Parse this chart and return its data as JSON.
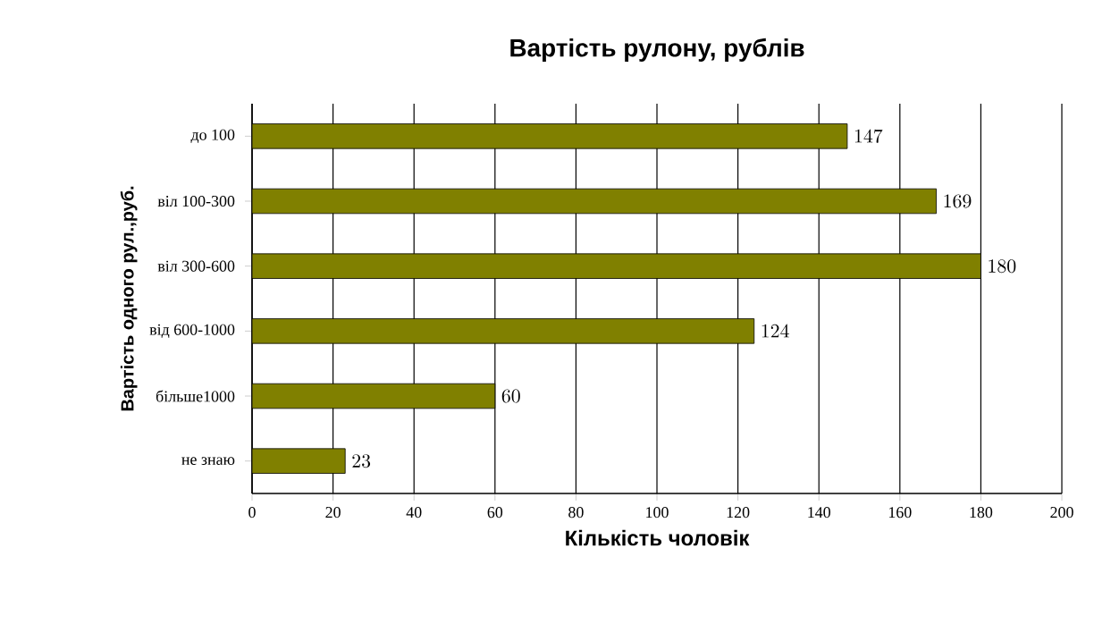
{
  "chart_data": {
    "type": "bar",
    "orientation": "horizontal",
    "title": "Вартість рулону, рублів",
    "xlabel": "Кількість чоловік",
    "ylabel": "Вартість одного рул.,руб.",
    "categories": [
      "до 100",
      "віл 100-300",
      "віл 300-600",
      "від 600-1000",
      "більше1000",
      "не знаю"
    ],
    "values": [
      147,
      169,
      180,
      124,
      60,
      23
    ],
    "color": "#808000",
    "data_labels": true,
    "grid": "x",
    "xlim": [
      0,
      200
    ],
    "xticks": [
      0,
      20,
      40,
      60,
      80,
      100,
      120,
      140,
      160,
      180,
      200
    ]
  }
}
